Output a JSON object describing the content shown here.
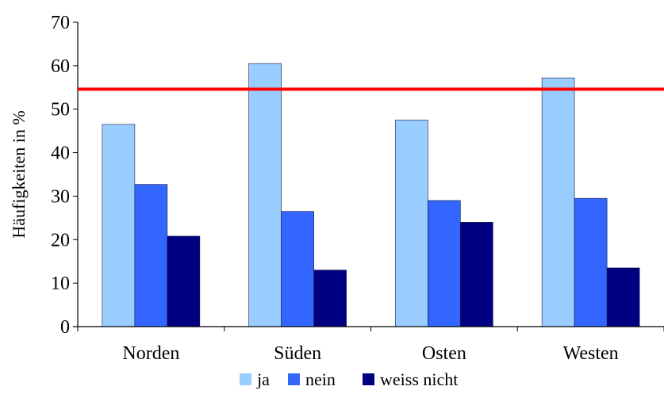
{
  "chart_data": {
    "type": "bar",
    "title": "",
    "xlabel": "",
    "ylabel": "Häufigkeiten in %",
    "ylim": [
      0,
      70
    ],
    "yticks": [
      0,
      10,
      20,
      30,
      40,
      50,
      60,
      70
    ],
    "categories": [
      "Norden",
      "Süden",
      "Osten",
      "Westen"
    ],
    "series": [
      {
        "name": "ja",
        "color": "#99ccff",
        "values": [
          46.5,
          60.5,
          47.5,
          57.2
        ]
      },
      {
        "name": "nein",
        "color": "#3366ff",
        "values": [
          32.7,
          26.5,
          29.0,
          29.5
        ]
      },
      {
        "name": "weiss nicht",
        "color": "#000080",
        "values": [
          20.8,
          13.0,
          24.0,
          13.5
        ]
      }
    ],
    "reference_line": {
      "value": 54.6,
      "color": "#ff0000"
    },
    "grid": false,
    "legend_position": "bottom"
  }
}
